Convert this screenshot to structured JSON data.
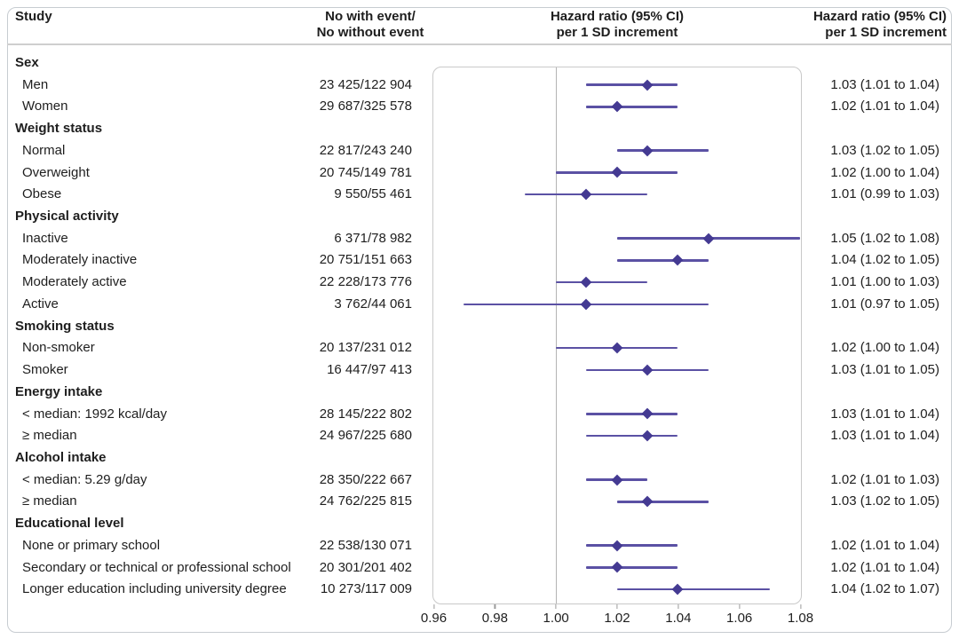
{
  "figure": {
    "column_headers": {
      "study": "Study",
      "events": [
        "No with event/",
        "No without event"
      ],
      "hazard_plot": [
        "Hazard ratio (95% CI)",
        "per 1 SD increment"
      ],
      "hazard_values": [
        "Hazard ratio (95% CI)",
        "per 1 SD increment"
      ]
    }
  },
  "chart_data": {
    "type": "forest",
    "title": "",
    "xlabel": "Hazard ratio (95% CI) per 1 SD increment",
    "x_axis": {
      "range": [
        0.96,
        1.08
      ],
      "tick_labels": [
        "0.96",
        "0.98",
        "1.00",
        "1.02",
        "1.04",
        "1.06",
        "1.08"
      ],
      "reference_line": 1.0
    },
    "colors": {
      "marker": "#443a92",
      "ci_line": "#5b51a4",
      "reference_line": "#b4b4b4"
    },
    "groups": [
      {
        "label": "Sex",
        "items": [
          {
            "label": "Men",
            "events": "23 425/122 904",
            "hr": 1.03,
            "ci_low": 1.01,
            "ci_high": 1.04,
            "hr_text": "1.03 (1.01 to 1.04)"
          },
          {
            "label": "Women",
            "events": "29 687/325 578",
            "hr": 1.02,
            "ci_low": 1.01,
            "ci_high": 1.04,
            "hr_text": "1.02 (1.01 to 1.04)"
          }
        ]
      },
      {
        "label": "Weight status",
        "items": [
          {
            "label": "Normal",
            "events": "22 817/243 240",
            "hr": 1.03,
            "ci_low": 1.02,
            "ci_high": 1.05,
            "hr_text": "1.03 (1.02 to 1.05)"
          },
          {
            "label": "Overweight",
            "events": "20 745/149 781",
            "hr": 1.02,
            "ci_low": 1.0,
            "ci_high": 1.04,
            "hr_text": "1.02 (1.00 to 1.04)"
          },
          {
            "label": "Obese",
            "events": "9 550/55 461",
            "hr": 1.01,
            "ci_low": 0.99,
            "ci_high": 1.03,
            "hr_text": "1.01 (0.99 to 1.03)"
          }
        ]
      },
      {
        "label": "Physical activity",
        "items": [
          {
            "label": "Inactive",
            "events": "6 371/78 982",
            "hr": 1.05,
            "ci_low": 1.02,
            "ci_high": 1.08,
            "hr_text": "1.05 (1.02 to 1.08)"
          },
          {
            "label": "Moderately inactive",
            "events": "20 751/151 663",
            "hr": 1.04,
            "ci_low": 1.02,
            "ci_high": 1.05,
            "hr_text": "1.04 (1.02 to 1.05)"
          },
          {
            "label": "Moderately active",
            "events": "22 228/173 776",
            "hr": 1.01,
            "ci_low": 1.0,
            "ci_high": 1.03,
            "hr_text": "1.01 (1.00 to 1.03)"
          },
          {
            "label": "Active",
            "events": "3 762/44 061",
            "hr": 1.01,
            "ci_low": 0.97,
            "ci_high": 1.05,
            "hr_text": "1.01 (0.97 to 1.05)"
          }
        ]
      },
      {
        "label": "Smoking status",
        "items": [
          {
            "label": "Non-smoker",
            "events": "20 137/231 012",
            "hr": 1.02,
            "ci_low": 1.0,
            "ci_high": 1.04,
            "hr_text": "1.02 (1.00 to 1.04)"
          },
          {
            "label": "Smoker",
            "events": "16 447/97 413",
            "hr": 1.03,
            "ci_low": 1.01,
            "ci_high": 1.05,
            "hr_text": "1.03 (1.01 to 1.05)"
          }
        ]
      },
      {
        "label": "Energy intake",
        "items": [
          {
            "label": "< median: 1992 kcal/day",
            "events": "28 145/222 802",
            "hr": 1.03,
            "ci_low": 1.01,
            "ci_high": 1.04,
            "hr_text": "1.03 (1.01 to 1.04)"
          },
          {
            "label": "≥ median",
            "events": "24 967/225 680",
            "hr": 1.03,
            "ci_low": 1.01,
            "ci_high": 1.04,
            "hr_text": "1.03 (1.01 to 1.04)"
          }
        ]
      },
      {
        "label": "Alcohol intake",
        "items": [
          {
            "label": "< median: 5.29 g/day",
            "events": "28 350/222 667",
            "hr": 1.02,
            "ci_low": 1.01,
            "ci_high": 1.03,
            "hr_text": "1.02 (1.01 to 1.03)"
          },
          {
            "label": "≥ median",
            "events": "24 762/225 815",
            "hr": 1.03,
            "ci_low": 1.02,
            "ci_high": 1.05,
            "hr_text": "1.03 (1.02 to 1.05)"
          }
        ]
      },
      {
        "label": "Educational level",
        "items": [
          {
            "label": "None or primary school",
            "events": "22 538/130 071",
            "hr": 1.02,
            "ci_low": 1.01,
            "ci_high": 1.04,
            "hr_text": "1.02 (1.01 to 1.04)"
          },
          {
            "label": "Secondary or technical or professional school",
            "events": "20 301/201 402",
            "hr": 1.02,
            "ci_low": 1.01,
            "ci_high": 1.04,
            "hr_text": "1.02 (1.01 to 1.04)"
          },
          {
            "label": "Longer education including university degree",
            "events": "10 273/117 009",
            "hr": 1.04,
            "ci_low": 1.02,
            "ci_high": 1.07,
            "hr_text": "1.04 (1.02 to 1.07)"
          }
        ]
      }
    ]
  }
}
